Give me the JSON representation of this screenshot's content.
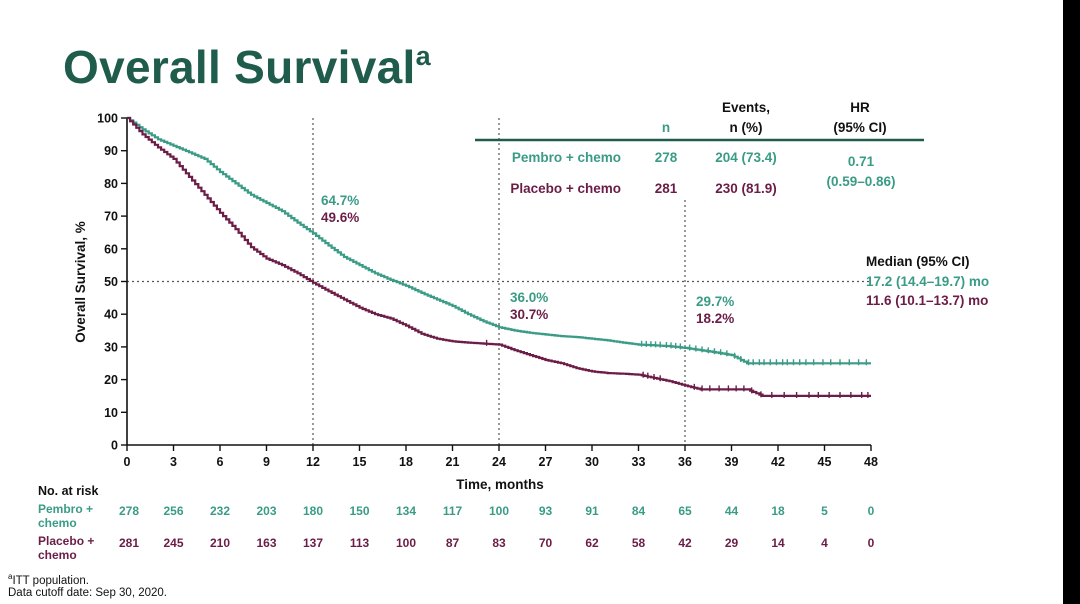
{
  "slide": {
    "title": "Overall Survival",
    "title_superscript": "a",
    "footnote_marker": "a",
    "footnote_1": "ITT population.",
    "footnote_2": "Data cutoff date: Sep 30, 2020."
  },
  "colors": {
    "title": "#1f5c4c",
    "pembro": "#3a9b86",
    "placebo": "#6b1d47",
    "rule": "#1f5c4c"
  },
  "chart_data": {
    "type": "line",
    "title": "",
    "xlabel": "Time, months",
    "ylabel": "Overall Survival, %",
    "xlim": [
      0,
      48
    ],
    "ylim": [
      0,
      100
    ],
    "xticks": [
      0,
      3,
      6,
      9,
      12,
      15,
      18,
      21,
      24,
      27,
      30,
      33,
      36,
      39,
      42,
      45,
      48
    ],
    "yticks": [
      0,
      10,
      20,
      30,
      40,
      50,
      60,
      70,
      80,
      90,
      100
    ],
    "grid": false,
    "series": [
      {
        "name": "Pembro + chemo",
        "color": "#3a9b86",
        "x": [
          0,
          1,
          2,
          3,
          4,
          5,
          6,
          7,
          8,
          9,
          10,
          11,
          12,
          13,
          14,
          15,
          16,
          17,
          18,
          19,
          20,
          21,
          22,
          23,
          24,
          25,
          26,
          27,
          28,
          29,
          30,
          31,
          32,
          33,
          34,
          35,
          36,
          37,
          38,
          39,
          40,
          41,
          42,
          43,
          44,
          45,
          46,
          47,
          48
        ],
        "y": [
          100,
          96.5,
          93.5,
          91.5,
          89.5,
          87.5,
          83.5,
          80,
          76.5,
          74,
          71.5,
          68,
          64.7,
          61,
          57.5,
          55,
          52.5,
          50.5,
          48.7,
          46.5,
          44.5,
          42.5,
          40,
          37.8,
          36,
          35,
          34.3,
          33.8,
          33.3,
          33,
          32.5,
          32,
          31.3,
          30.7,
          30.5,
          30.2,
          29.7,
          29,
          28.3,
          27.5,
          25,
          25,
          25,
          25,
          25,
          25,
          25,
          25,
          25
        ],
        "censor_x": [
          33.2,
          33.5,
          33.8,
          34.1,
          34.4,
          34.8,
          35.1,
          35.4,
          35.7,
          36.3,
          36.7,
          37.1,
          37.5,
          37.9,
          38.3,
          38.7,
          39.2,
          39.6,
          40.1,
          40.4,
          40.8,
          41.1,
          41.5,
          41.9,
          42.3,
          42.6,
          43.0,
          43.4,
          43.8,
          44.3,
          44.9,
          45.4,
          46.0,
          46.6,
          47.2,
          47.7
        ],
        "at_risk": [
          278,
          256,
          232,
          203,
          180,
          150,
          134,
          117,
          100,
          93,
          91,
          84,
          65,
          44,
          18,
          5,
          0
        ]
      },
      {
        "name": "Placebo + chemo",
        "color": "#6b1d47",
        "x": [
          0,
          1,
          2,
          3,
          4,
          5,
          6,
          7,
          8,
          9,
          10,
          11,
          12,
          13,
          14,
          15,
          16,
          17,
          18,
          19,
          20,
          21,
          22,
          23,
          24,
          25,
          26,
          27,
          28,
          29,
          30,
          31,
          32,
          33,
          34,
          35,
          36,
          37,
          38,
          39,
          40,
          41,
          42,
          43,
          44,
          45,
          46,
          47,
          48
        ],
        "y": [
          100,
          95,
          91,
          87.5,
          82,
          76.5,
          71,
          66,
          60.5,
          57,
          55,
          52.5,
          49.6,
          47,
          44.5,
          42,
          40,
          38.7,
          36.5,
          34,
          32.5,
          31.7,
          31.3,
          31,
          30.7,
          29,
          27.5,
          26,
          25,
          23.5,
          22.5,
          22,
          21.8,
          21.5,
          20.5,
          19.5,
          18.2,
          17,
          17,
          17,
          17,
          15,
          15,
          15,
          15,
          15,
          15,
          15,
          15
        ],
        "censor_x": [
          23.2,
          33.3,
          33.6,
          34.0,
          34.4,
          36.6,
          37.1,
          37.6,
          38.2,
          38.8,
          39.3,
          39.8,
          40.3,
          40.9,
          41.6,
          42.4,
          43.2,
          44.0,
          44.6,
          45.3,
          46.0,
          46.7,
          47.4,
          47.8
        ],
        "at_risk": [
          281,
          245,
          210,
          163,
          137,
          113,
          100,
          87,
          83,
          70,
          62,
          58,
          42,
          29,
          14,
          4,
          0
        ]
      }
    ],
    "reference_lines": {
      "horizontal_y": 50,
      "vertical_x": [
        12,
        24,
        36
      ]
    },
    "landmark_labels": [
      {
        "x": 12,
        "pembro": "64.7%",
        "placebo": "49.6%"
      },
      {
        "x": 24,
        "pembro": "36.0%",
        "placebo": "30.7%"
      },
      {
        "x": 36,
        "pembro": "29.7%",
        "placebo": "18.2%"
      }
    ],
    "summary_table": {
      "headers": [
        "n",
        "Events,",
        "n (%)",
        "HR",
        "(95% CI)"
      ],
      "rows": [
        {
          "label": "Pembro + chemo",
          "n": "278",
          "events": "204 (73.4)"
        },
        {
          "label": "Placebo + chemo",
          "n": "281",
          "events": "230 (81.9)"
        }
      ],
      "hr": "0.71",
      "hr_ci": "(0.59–0.86)"
    },
    "median": {
      "heading": "Median (95% CI)",
      "pembro": "17.2 (14.4–19.7) mo",
      "placebo": "11.6 (10.1–13.7) mo"
    },
    "at_risk_table": {
      "heading": "No. at risk",
      "row_labels": [
        [
          "Pembro +",
          "chemo"
        ],
        [
          "Placebo +",
          "chemo"
        ]
      ]
    }
  }
}
